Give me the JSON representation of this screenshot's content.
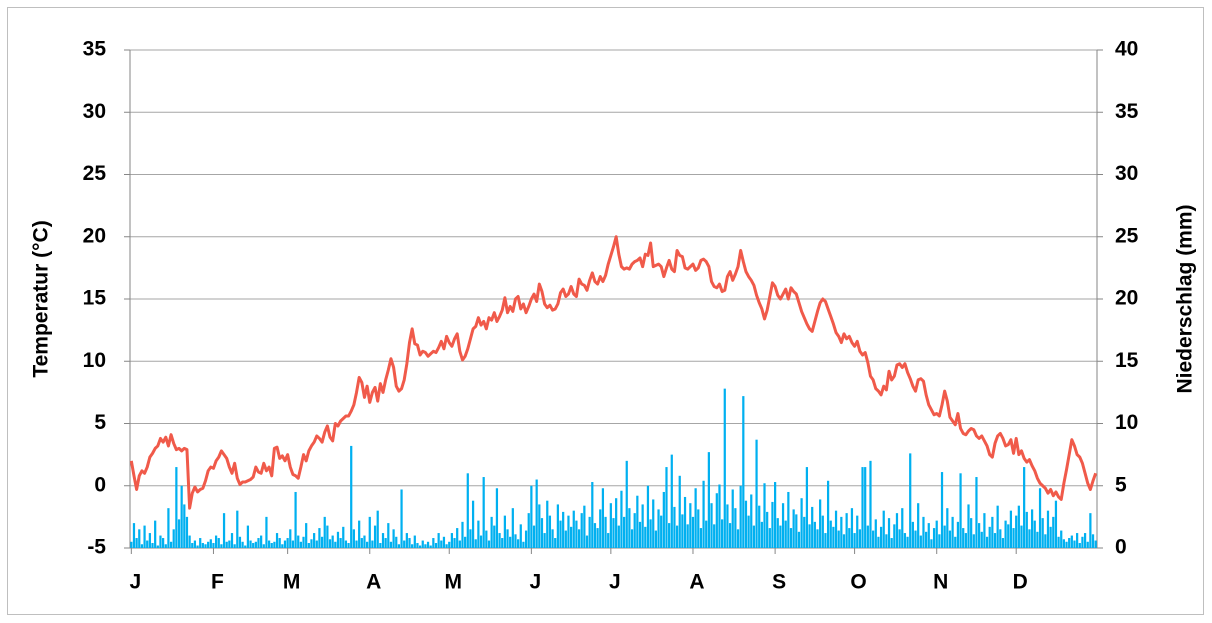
{
  "chart_data": {
    "type": "combo",
    "y_label": "Temperatur (°C)",
    "y2_label": "Niederschlag (mm)",
    "xlim": [
      0.5,
      365.5
    ],
    "xticks": [
      {
        "value": 1,
        "label": "J"
      },
      {
        "value": 32,
        "label": "F"
      },
      {
        "value": 60,
        "label": "M"
      },
      {
        "value": 91,
        "label": "A"
      },
      {
        "value": 121,
        "label": "M"
      },
      {
        "value": 152,
        "label": "J"
      },
      {
        "value": 182,
        "label": "J"
      },
      {
        "value": 213,
        "label": "A"
      },
      {
        "value": 244,
        "label": "S"
      },
      {
        "value": 274,
        "label": "O"
      },
      {
        "value": 305,
        "label": "N"
      },
      {
        "value": 335,
        "label": "D"
      }
    ],
    "ylim": [
      -5,
      35
    ],
    "yticks": [
      -5,
      0,
      5,
      10,
      15,
      20,
      25,
      30,
      35
    ],
    "y2lim": [
      0,
      40
    ],
    "y2ticks": [
      0,
      5,
      10,
      15,
      20,
      25,
      30,
      35,
      40
    ],
    "grid": true,
    "x": [
      1,
      2,
      3,
      4,
      5,
      6,
      7,
      8,
      9,
      10,
      11,
      12,
      13,
      14,
      15,
      16,
      17,
      18,
      19,
      20,
      21,
      22,
      23,
      24,
      25,
      26,
      27,
      28,
      29,
      30,
      31,
      32,
      33,
      34,
      35,
      36,
      37,
      38,
      39,
      40,
      41,
      42,
      43,
      44,
      45,
      46,
      47,
      48,
      49,
      50,
      51,
      52,
      53,
      54,
      55,
      56,
      57,
      58,
      59,
      60,
      61,
      62,
      63,
      64,
      65,
      66,
      67,
      68,
      69,
      70,
      71,
      72,
      73,
      74,
      75,
      76,
      77,
      78,
      79,
      80,
      81,
      82,
      83,
      84,
      85,
      86,
      87,
      88,
      89,
      90,
      91,
      92,
      93,
      94,
      95,
      96,
      97,
      98,
      99,
      100,
      101,
      102,
      103,
      104,
      105,
      106,
      107,
      108,
      109,
      110,
      111,
      112,
      113,
      114,
      115,
      116,
      117,
      118,
      119,
      120,
      121,
      122,
      123,
      124,
      125,
      126,
      127,
      128,
      129,
      130,
      131,
      132,
      133,
      134,
      135,
      136,
      137,
      138,
      139,
      140,
      141,
      142,
      143,
      144,
      145,
      146,
      147,
      148,
      149,
      150,
      151,
      152,
      153,
      154,
      155,
      156,
      157,
      158,
      159,
      160,
      161,
      162,
      163,
      164,
      165,
      166,
      167,
      168,
      169,
      170,
      171,
      172,
      173,
      174,
      175,
      176,
      177,
      178,
      179,
      180,
      181,
      182,
      183,
      184,
      185,
      186,
      187,
      188,
      189,
      190,
      191,
      192,
      193,
      194,
      195,
      196,
      197,
      198,
      199,
      200,
      201,
      202,
      203,
      204,
      205,
      206,
      207,
      208,
      209,
      210,
      211,
      212,
      213,
      214,
      215,
      216,
      217,
      218,
      219,
      220,
      221,
      222,
      223,
      224,
      225,
      226,
      227,
      228,
      229,
      230,
      231,
      232,
      233,
      234,
      235,
      236,
      237,
      238,
      239,
      240,
      241,
      242,
      243,
      244,
      245,
      246,
      247,
      248,
      249,
      250,
      251,
      252,
      253,
      254,
      255,
      256,
      257,
      258,
      259,
      260,
      261,
      262,
      263,
      264,
      265,
      266,
      267,
      268,
      269,
      270,
      271,
      272,
      273,
      274,
      275,
      276,
      277,
      278,
      279,
      280,
      281,
      282,
      283,
      284,
      285,
      286,
      287,
      288,
      289,
      290,
      291,
      292,
      293,
      294,
      295,
      296,
      297,
      298,
      299,
      300,
      301,
      302,
      303,
      304,
      305,
      306,
      307,
      308,
      309,
      310,
      311,
      312,
      313,
      314,
      315,
      316,
      317,
      318,
      319,
      320,
      321,
      322,
      323,
      324,
      325,
      326,
      327,
      328,
      329,
      330,
      331,
      332,
      333,
      334,
      335,
      336,
      337,
      338,
      339,
      340,
      341,
      342,
      343,
      344,
      345,
      346,
      347,
      348,
      349,
      350,
      351,
      352,
      353,
      354,
      355,
      356,
      357,
      358,
      359,
      360,
      361,
      362,
      363,
      364,
      365
    ],
    "series": [
      {
        "type": "bar",
        "axis": "y2",
        "color": "#00b0f0",
        "values": [
          0.5,
          2,
          0.8,
          1.5,
          0.3,
          1.8,
          0.6,
          1.2,
          0.4,
          2.2,
          0.2,
          1,
          0.8,
          0.3,
          3.2,
          0.5,
          1.5,
          6.5,
          2.3,
          5,
          3.5,
          2.5,
          1,
          0.4,
          0.6,
          0.2,
          0.8,
          0.4,
          0.3,
          0.5,
          0.7,
          0.4,
          1,
          0.8,
          0.3,
          2.8,
          0.5,
          0.6,
          1.2,
          0.3,
          3,
          0.9,
          0.5,
          0.2,
          1.8,
          0.6,
          0.4,
          0.5,
          0.8,
          1,
          0.3,
          2.5,
          0.6,
          0.4,
          0.5,
          1.2,
          0.8,
          0.3,
          0.6,
          0.8,
          1.5,
          0.6,
          4.5,
          1,
          0.5,
          0.9,
          2,
          0.4,
          0.7,
          1.2,
          0.6,
          1.6,
          0.9,
          2.5,
          1.8,
          0.7,
          1,
          0.5,
          1.3,
          0.8,
          1.7,
          0.6,
          0.4,
          8.2,
          1.5,
          0.6,
          2.2,
          0.8,
          1,
          0.5,
          2.5,
          0.6,
          1.8,
          3,
          0.4,
          1.2,
          0.8,
          2,
          0.5,
          1.5,
          0.9,
          0.3,
          4.7,
          0.6,
          1.2,
          0.8,
          0.3,
          1,
          0.4,
          0.2,
          0.6,
          0.3,
          0.5,
          0.2,
          0.8,
          0.4,
          1.2,
          0.6,
          0.9,
          0.3,
          0.5,
          1.2,
          0.8,
          1.6,
          0.6,
          2.1,
          0.9,
          6,
          1.5,
          3.8,
          0.7,
          2.2,
          1,
          5.7,
          1.4,
          0.6,
          2.5,
          1.8,
          4.8,
          1.2,
          0.8,
          2.6,
          1.5,
          0.9,
          3.2,
          1.1,
          0.7,
          1.9,
          0.5,
          1.4,
          2.8,
          5,
          1.8,
          5.5,
          3.5,
          2.4,
          1.2,
          3.8,
          2.6,
          1.5,
          0.8,
          3.5,
          2.2,
          2.9,
          1.4,
          2.6,
          1.7,
          3,
          2.2,
          1.5,
          2.8,
          3.4,
          1,
          2.5,
          5.3,
          2,
          1.6,
          3.1,
          4.8,
          2.5,
          1.2,
          3.6,
          2.4,
          4,
          1.8,
          4.6,
          2.5,
          7,
          3.2,
          1.5,
          2.8,
          4.2,
          2.1,
          3.5,
          1.7,
          5,
          2.3,
          3.9,
          1.4,
          3.1,
          2.6,
          4.5,
          6.5,
          2,
          7.5,
          3.3,
          1.8,
          5.8,
          2.7,
          4.1,
          1.9,
          3.6,
          2.5,
          4.8,
          3.1,
          1.6,
          5.4,
          2.2,
          7.7,
          3.6,
          1.9,
          4.4,
          5.1,
          2.3,
          12.8,
          3.5,
          2,
          4.7,
          3.2,
          1.5,
          5,
          12.2,
          3.8,
          2.6,
          4.3,
          1.8,
          8.7,
          3.4,
          2.1,
          5.2,
          2.9,
          1.6,
          3.7,
          5.3,
          2.4,
          1.8,
          3.6,
          2.2,
          4.5,
          1.6,
          3.1,
          2.7,
          1.3,
          4,
          2.5,
          6.5,
          1.9,
          3.3,
          2.1,
          1.5,
          3.9,
          2.6,
          1.2,
          5.4,
          2.2,
          1.7,
          3,
          1.4,
          2.5,
          1.1,
          2.8,
          1.6,
          3.2,
          1.2,
          2.6,
          1.5,
          6.5,
          6.5,
          1.8,
          7,
          1.4,
          2.3,
          0.9,
          1.7,
          3,
          1.1,
          2.4,
          0.8,
          1.9,
          2.8,
          1.5,
          3.2,
          1.2,
          0.9,
          7.6,
          2.1,
          1.4,
          3.6,
          1,
          2.5,
          1.3,
          2,
          0.7,
          1.6,
          2.2,
          1.1,
          6.1,
          1.8,
          3.2,
          1.4,
          2.5,
          0.9,
          2.1,
          6,
          1.6,
          1.2,
          3.5,
          2.4,
          1.1,
          5.7,
          2,
          1.3,
          2.8,
          0.9,
          1.7,
          2.5,
          1.2,
          3.4,
          1.5,
          0.8,
          2.2,
          1.9,
          3,
          1.6,
          2.6,
          3.4,
          1.8,
          6.5,
          2.9,
          1.5,
          3.1,
          2.2,
          1.3,
          4.8,
          2.4,
          1.1,
          3,
          1.7,
          2.5,
          3.8,
          0.9,
          1.4,
          0.7,
          0.5,
          0.8,
          1,
          0.6,
          1.2,
          0.4,
          0.9,
          1.2,
          0.5,
          2.8,
          1.1,
          0.6
        ]
      },
      {
        "type": "line",
        "axis": "y",
        "color": "#f05a4a",
        "values": [
          2,
          0.8,
          -0.3,
          0.8,
          1.2,
          1,
          1.5,
          2.3,
          2.6,
          3,
          3.2,
          3.8,
          3.5,
          3.9,
          3.2,
          4.1,
          3.4,
          2.9,
          3,
          2.8,
          3,
          2.9,
          -1.8,
          -0.6,
          -0.1,
          -0.5,
          -0.3,
          -0.2,
          0.4,
          1.2,
          1.5,
          1.4,
          2,
          2.3,
          2.8,
          2.5,
          2.2,
          1.5,
          1,
          1.8,
          0.6,
          0.1,
          0.3,
          0.3,
          0.4,
          0.5,
          0.7,
          1.5,
          1.1,
          1,
          1.8,
          1.2,
          1.5,
          0.8,
          3,
          3.1,
          2.2,
          2.4,
          2,
          2.5,
          1.5,
          0.9,
          0.8,
          0.6,
          1.5,
          2.5,
          2,
          2.8,
          3.2,
          3.5,
          4,
          3.8,
          3.5,
          4.3,
          4.8,
          3.9,
          3.6,
          5,
          4.8,
          5.2,
          5.4,
          5.6,
          5.6,
          6,
          6.5,
          7.5,
          8.7,
          8.3,
          7.1,
          8,
          6.7,
          7.5,
          7.9,
          6.8,
          8.2,
          7.5,
          8.5,
          9.3,
          10.2,
          9.5,
          8,
          7.6,
          7.8,
          8.5,
          9.8,
          11.5,
          12.6,
          11.4,
          11.3,
          10.5,
          10.8,
          10.7,
          10.4,
          10.6,
          10.8,
          10.7,
          11.1,
          11.6,
          11,
          12,
          11.5,
          11.2,
          11.8,
          12.2,
          10.8,
          10.1,
          10.4,
          11,
          11.8,
          12.6,
          12.8,
          13.5,
          12.9,
          13.2,
          12.6,
          13.5,
          13.3,
          13.9,
          13.2,
          13.6,
          14.1,
          15.1,
          13.9,
          14.4,
          14,
          15,
          15.2,
          14.2,
          14.6,
          13.9,
          14.4,
          15,
          15.4,
          14.8,
          16.2,
          15.6,
          14.6,
          14.3,
          14.5,
          14.1,
          14.2,
          14.6,
          15.5,
          15.8,
          15.2,
          15.4,
          16,
          15.4,
          15.2,
          16.6,
          16.2,
          16.1,
          15.7,
          16.5,
          17.1,
          16.4,
          16.2,
          16.8,
          16.4,
          16.9,
          17.8,
          18.5,
          19.2,
          20,
          18.6,
          17.6,
          17.4,
          17.5,
          17.4,
          17.8,
          18,
          18.1,
          18.3,
          17.6,
          18.6,
          18.5,
          19.5,
          17.6,
          17.7,
          17.8,
          17.6,
          16.8,
          17.5,
          18.1,
          17.4,
          17.2,
          18.9,
          18.5,
          18.4,
          17.5,
          17.4,
          17.6,
          17.8,
          17.3,
          17.5,
          18.1,
          18.2,
          18,
          17.6,
          16.4,
          16,
          15.9,
          16.2,
          15.6,
          15.7,
          16.8,
          17.2,
          16.5,
          17,
          17.6,
          18.9,
          18,
          17.2,
          16.8,
          16.5,
          16.1,
          15.3,
          14.7,
          14.2,
          13.4,
          14.1,
          15.2,
          16.3,
          16,
          15.3,
          15,
          15.4,
          15.8,
          15,
          15.9,
          15.6,
          15.4,
          14.7,
          14,
          13.5,
          13,
          12.6,
          12.4,
          13.2,
          14,
          14.7,
          15,
          14.8,
          14.2,
          13.6,
          13,
          12.3,
          12,
          11.5,
          12.2,
          11.8,
          12,
          11.5,
          11.2,
          11.6,
          10.8,
          10.5,
          10.7,
          9.9,
          8.8,
          8.5,
          7.8,
          7.6,
          7.3,
          8,
          7.7,
          9.2,
          8.5,
          8.8,
          9.7,
          9.8,
          9.5,
          9.8,
          9.1,
          8.6,
          8,
          7.6,
          8.5,
          8.6,
          8.4,
          7.3,
          6.5,
          6.1,
          5.7,
          5.8,
          5.6,
          6.5,
          7.6,
          6.8,
          5.5,
          5.2,
          4.9,
          5.8,
          4.6,
          4.2,
          4.1,
          4.4,
          4.6,
          4.5,
          4,
          3.8,
          4,
          3.6,
          3.2,
          2.5,
          2.3,
          3.4,
          4,
          4.2,
          3.8,
          3.2,
          3.3,
          3.7,
          2.6,
          3.8,
          2.5,
          2.8,
          2.2,
          1.9,
          2.1,
          1.6,
          1.2,
          0.6,
          0.2,
          0,
          -0.2,
          -0.6,
          -0.3,
          -0.8,
          -0.5,
          -0.9,
          -1.1,
          0.2,
          1.3,
          2.5,
          3.7,
          3.2,
          2.5,
          2.3,
          1.8,
          1,
          0.2,
          -0.3,
          0.4,
          1
        ]
      }
    ]
  }
}
